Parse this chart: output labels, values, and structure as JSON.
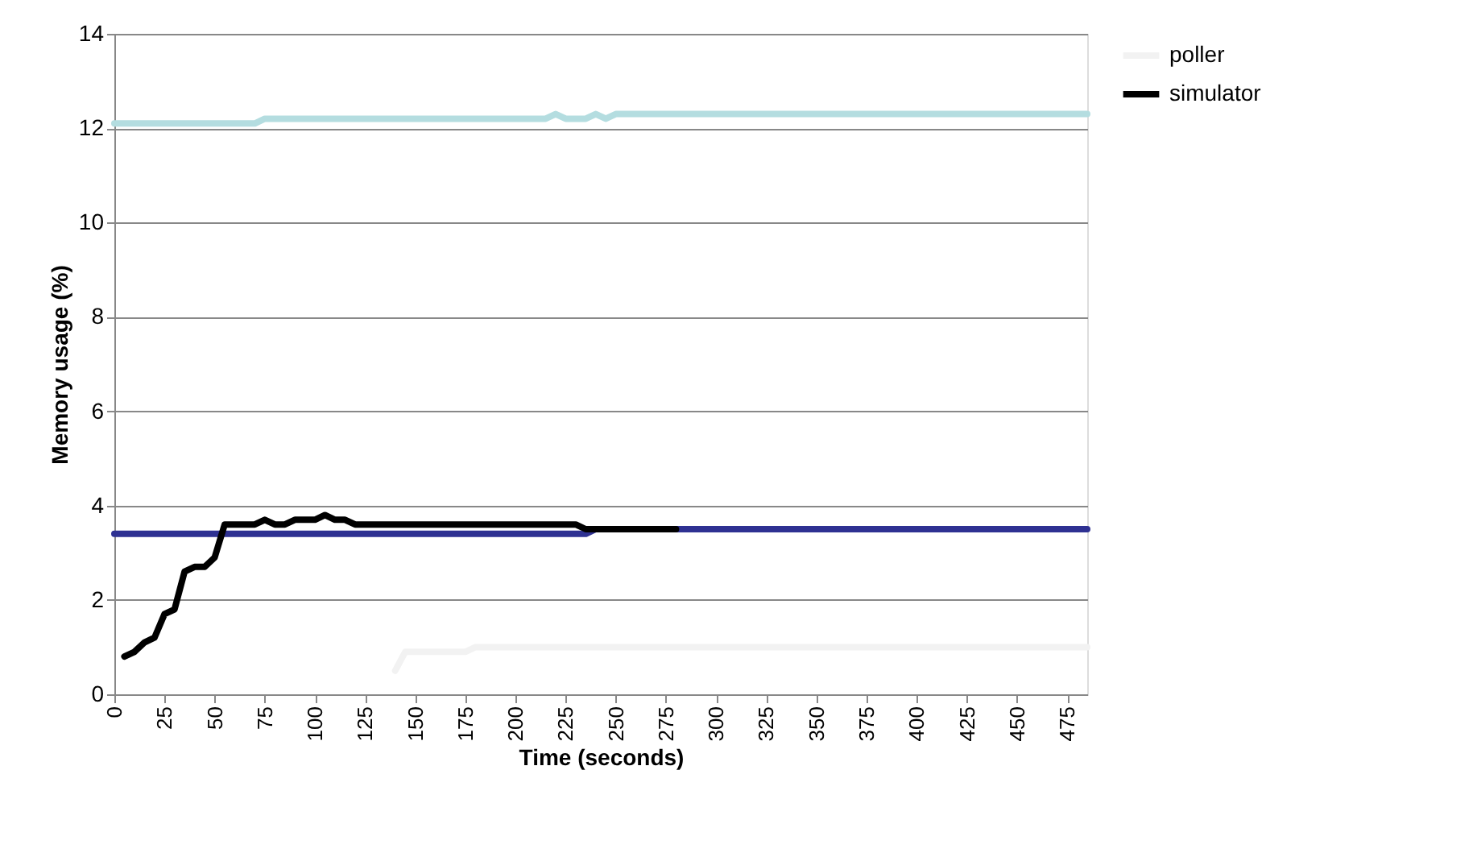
{
  "chart_data": {
    "type": "line",
    "xlabel": "Time (seconds)",
    "ylabel": "Memory usage (%)",
    "xlim": [
      0,
      485
    ],
    "xticks": [
      0,
      25,
      50,
      75,
      100,
      125,
      150,
      175,
      200,
      225,
      250,
      275,
      300,
      325,
      350,
      375,
      400,
      425,
      450,
      475
    ],
    "ylim": [
      0,
      14
    ],
    "yticks": [
      0,
      2,
      4,
      6,
      8,
      10,
      12,
      14
    ],
    "grid": "y",
    "legend": "right",
    "marker": "none",
    "line_style": "solid",
    "series": [
      {
        "color": "#b4dde0",
        "x": [
          0,
          70,
          75,
          215,
          220,
          225,
          235,
          240,
          245,
          250,
          485
        ],
        "values": [
          12.1,
          12.1,
          12.2,
          12.2,
          12.3,
          12.2,
          12.2,
          12.3,
          12.2,
          12.3,
          12.3
        ]
      },
      {
        "color": "#2e3192",
        "x": [
          0,
          235,
          240,
          485
        ],
        "values": [
          3.4,
          3.4,
          3.5,
          3.5
        ]
      },
      {
        "name": "poller",
        "color": "#f2f2f2",
        "x": [
          140,
          145,
          175,
          180,
          485
        ],
        "values": [
          0.5,
          0.9,
          0.9,
          1.0,
          1.0
        ]
      },
      {
        "name": "simulator",
        "color": "#000000",
        "x": [
          5,
          10,
          15,
          20,
          25,
          30,
          35,
          40,
          45,
          50,
          55,
          70,
          75,
          80,
          85,
          90,
          100,
          105,
          110,
          115,
          120,
          230,
          235,
          280
        ],
        "values": [
          0.8,
          0.9,
          1.1,
          1.2,
          1.7,
          1.8,
          2.6,
          2.7,
          2.7,
          2.9,
          3.6,
          3.6,
          3.7,
          3.6,
          3.6,
          3.7,
          3.7,
          3.8,
          3.7,
          3.7,
          3.6,
          3.6,
          3.5,
          3.5
        ]
      }
    ]
  }
}
